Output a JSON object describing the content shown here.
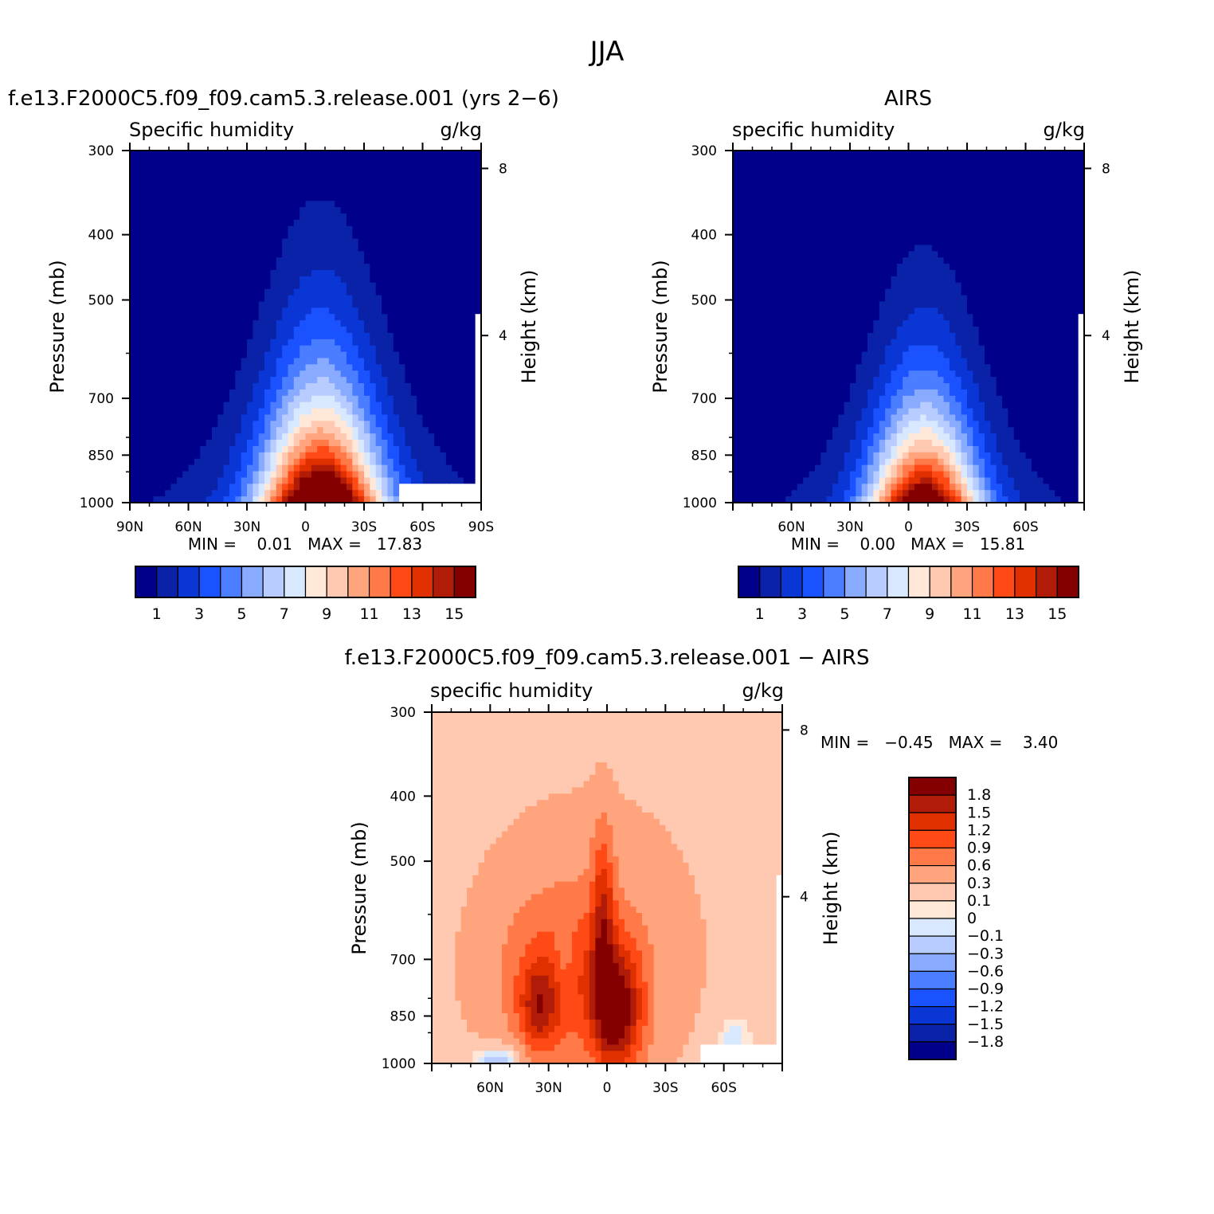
{
  "figure": {
    "season_title": "JJA"
  },
  "chart_data": [
    {
      "type": "heatmap",
      "title": "f.e13.F2000C5.f09_f09.cam5.3.release.001 (yrs 2−6)",
      "subtitle_left": "Specific humidity",
      "subtitle_right": "g/kg",
      "ylabel": "Pressure (mb)",
      "ylabel_right": "Height (km)",
      "x_ticks": [
        "90N",
        "60N",
        "30N",
        "0",
        "30S",
        "60S",
        "90S"
      ],
      "y_ticks": [
        "300",
        "400",
        "500",
        "700",
        "850",
        "1000"
      ],
      "y_right_ticks": [
        "8",
        "4"
      ],
      "stats_text": "MIN =    0.01   MAX =   17.83",
      "min": 0.01,
      "max": 17.83,
      "colorbar_labels": [
        "1",
        "3",
        "5",
        "7",
        "9",
        "11",
        "13",
        "15"
      ],
      "colorbar_orientation": "horizontal",
      "peak_lat": -8,
      "peak_value": 17.83,
      "fill_domain": {
        "lat_south": 90,
        "p_top": 300
      }
    },
    {
      "type": "heatmap",
      "title": "AIRS",
      "subtitle_left": "specific humidity",
      "subtitle_right": "g/kg",
      "ylabel": "Pressure (mb)",
      "ylabel_right": "Height (km)",
      "x_ticks": [
        "60N",
        "30N",
        "0",
        "30S",
        "60S"
      ],
      "y_ticks": [
        "300",
        "400",
        "500",
        "700",
        "850",
        "1000"
      ],
      "y_right_ticks": [
        "8",
        "4"
      ],
      "stats_text": "MIN =    0.00   MAX =   15.81",
      "min": 0.0,
      "max": 15.81,
      "colorbar_labels": [
        "1",
        "3",
        "5",
        "7",
        "9",
        "11",
        "13",
        "15"
      ],
      "colorbar_orientation": "horizontal",
      "peak_lat": -8,
      "peak_value": 15.81
    },
    {
      "type": "heatmap",
      "title": "f.e13.F2000C5.f09_f09.cam5.3.release.001 − AIRS",
      "subtitle_left": "specific humidity",
      "subtitle_right": "g/kg",
      "ylabel": "Pressure (mb)",
      "ylabel_right": "Height (km)",
      "x_ticks": [
        "60N",
        "30N",
        "0",
        "30S",
        "60S"
      ],
      "y_ticks": [
        "300",
        "400",
        "500",
        "700",
        "850",
        "1000"
      ],
      "y_right_ticks": [
        "8",
        "4"
      ],
      "stats_text": "MIN =   −0.45   MAX =    3.40",
      "min": -0.45,
      "max": 3.4,
      "colorbar_labels": [
        "1.8",
        "1.5",
        "1.2",
        "0.9",
        "0.6",
        "0.3",
        "0.1",
        "0",
        "−0.1",
        "−0.3",
        "−0.6",
        "−0.9",
        "−1.2",
        "−1.5",
        "−1.8"
      ],
      "colorbar_orientation": "vertical"
    }
  ],
  "colors": {
    "seq_levels": [
      "#00008b",
      "#0a22a8",
      "#0b36d6",
      "#1a52ff",
      "#4a7dff",
      "#88aaff",
      "#b8ccff",
      "#d8e8ff",
      "#ffe8d8",
      "#ffc8b0",
      "#ffa47c",
      "#ff7a48",
      "#ff4a16",
      "#e03000",
      "#b01c08",
      "#840000"
    ],
    "diff_levels": [
      "#840000",
      "#b01c08",
      "#e03000",
      "#ff4a16",
      "#ff7a48",
      "#ffa47c",
      "#ffc8b0",
      "#ffe8d8",
      "#d8e8ff",
      "#b8ccff",
      "#88aaff",
      "#4a7dff",
      "#1a52ff",
      "#0b36d6",
      "#0a22a8",
      "#00008b"
    ]
  }
}
